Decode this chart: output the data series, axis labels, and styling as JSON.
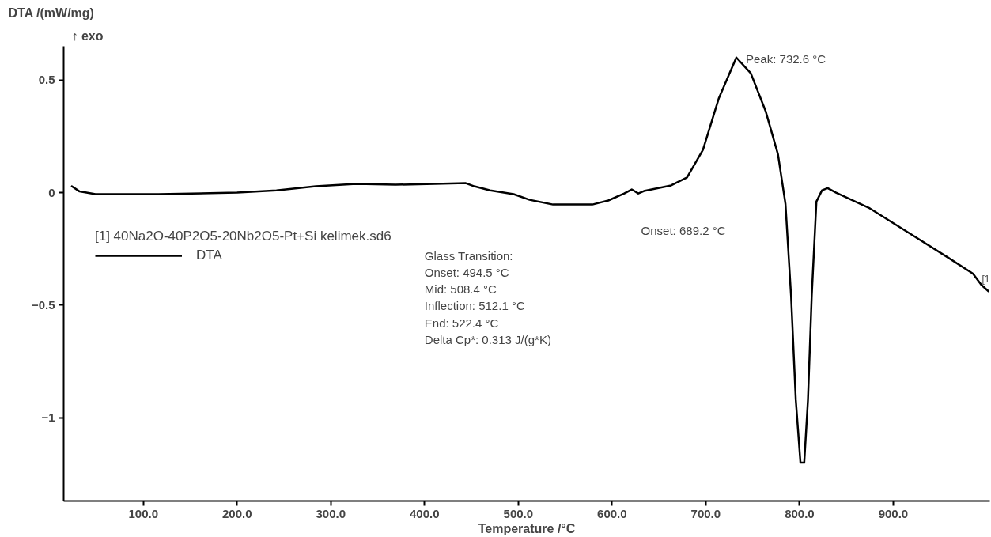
{
  "chart_data": {
    "type": "line",
    "xlabel": "Temperature /°C",
    "ylabel": "DTA /(mW/mg)",
    "legend_title": "[1] 40Na2O-40P2O5-20Nb2O5-Pt+Si kelimek.sd6",
    "legend": "left",
    "grid": false,
    "marker": "none",
    "line_style": "solid",
    "xlim": [
      15,
      1003
    ],
    "ylim": [
      -1.37,
      0.65
    ],
    "xticks": [
      {
        "value": 100,
        "label": "100.0"
      },
      {
        "value": 200,
        "label": "200.0"
      },
      {
        "value": 300,
        "label": "300.0"
      },
      {
        "value": 400,
        "label": "400.0"
      },
      {
        "value": 500,
        "label": "500.0"
      },
      {
        "value": 600,
        "label": "600.0"
      },
      {
        "value": 700,
        "label": "700.0"
      },
      {
        "value": 800,
        "label": "800.0"
      },
      {
        "value": 900,
        "label": "900.0"
      }
    ],
    "yticks": [
      -1,
      -0.5,
      0,
      0.5
    ],
    "series": [
      {
        "name": "DTA",
        "color": "#000000",
        "x": [
          23,
          32,
          49,
          116,
          200,
          242,
          284,
          327,
          369,
          411,
          444,
          453,
          470,
          495,
          512,
          537,
          579,
          596,
          613,
          621,
          628,
          634,
          663,
          680,
          697,
          714,
          732.6,
          748,
          764,
          777,
          785,
          791,
          796,
          801,
          805,
          809,
          813,
          818,
          824,
          830,
          839,
          875,
          917,
          959,
          985,
          994,
          1002
        ],
        "values": [
          0.03,
          0.005,
          -0.007,
          -0.007,
          0,
          0.01,
          0.028,
          0.039,
          0.035,
          0.039,
          0.042,
          0.028,
          0.01,
          -0.007,
          -0.032,
          -0.053,
          -0.053,
          -0.035,
          -0.004,
          0.014,
          -0.004,
          0.007,
          0.032,
          0.067,
          0.19,
          0.42,
          0.6,
          0.53,
          0.36,
          0.17,
          -0.05,
          -0.46,
          -0.92,
          -1.2,
          -1.2,
          -0.92,
          -0.46,
          -0.04,
          0.01,
          0.02,
          0.0,
          -0.07,
          -0.18,
          -0.29,
          -0.36,
          -0.41,
          -0.44
        ]
      }
    ],
    "annotations": [
      "↑ exo",
      {
        "text": "Peak: 732.6 °C",
        "x": 732.6,
        "y": 0.6
      },
      "Onset: 689.2 °C",
      "Glass Transition:\nOnset:       494.5 °C\nMid:           508.4 °C\nInflection:  512.1 °C\nEnd:           522.4 °C\nDelta Cp*:      0.313 J/(g*K)",
      "[1"
    ]
  }
}
